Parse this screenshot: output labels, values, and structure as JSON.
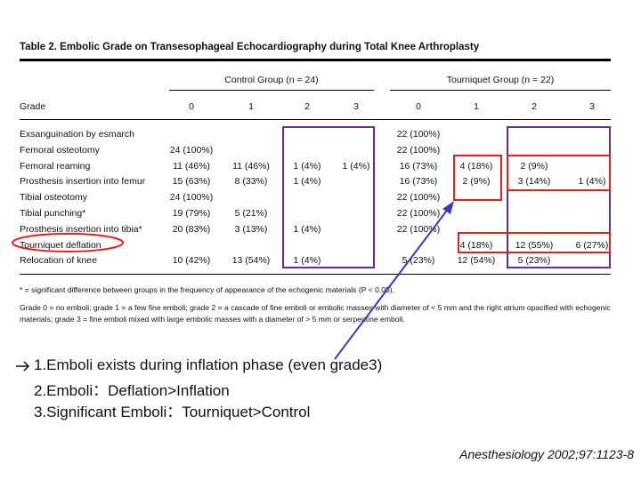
{
  "table": {
    "title": "Table 2. Embolic Grade on Transesophageal Echocardiography during Total Knee Arthroplasty",
    "groups": [
      "Control Group (n = 24)",
      "Tourniquet Group (n = 22)"
    ],
    "header": [
      "Grade",
      "0",
      "1",
      "2",
      "3",
      "0",
      "1",
      "2",
      "3"
    ],
    "rows": [
      [
        "Exsanguination by esmarch",
        null,
        null,
        null,
        null,
        "22 (100%)",
        null,
        null,
        null
      ],
      [
        "Femoral osteotomy",
        "24 (100%)",
        null,
        null,
        null,
        "22 (100%)",
        null,
        null,
        null
      ],
      [
        "Femoral reaming",
        "11 (46%)",
        "11 (46%)",
        "1 (4%)",
        "1 (4%)",
        "16 (73%)",
        "4 (18%)",
        "2 (9%)",
        null
      ],
      [
        "Prosthesis insertion into femur",
        "15 (63%)",
        "8 (33%)",
        "1 (4%)",
        null,
        "16 (73%)",
        "2 (9%)",
        "3 (14%)",
        "1 (4%)"
      ],
      [
        "Tibial osteotomy",
        "24 (100%)",
        null,
        null,
        null,
        "22 (100%)",
        null,
        null,
        null
      ],
      [
        "Tibial punching*",
        "19 (79%)",
        "5 (21%)",
        null,
        null,
        "22 (100%)",
        null,
        null,
        null
      ],
      [
        "Prosthesis insertion into tibia*",
        "20 (83%)",
        "3 (13%)",
        "1 (4%)",
        null,
        "22 (100%)",
        null,
        null,
        null
      ],
      [
        "Tourniquet deflation",
        null,
        null,
        null,
        null,
        null,
        "4 (18%)",
        "12 (55%)",
        "6 (27%)"
      ],
      [
        "Relocation of knee",
        "10 (42%)",
        "13 (54%)",
        "1 (4%)",
        null,
        "5 (23%)",
        "12 (54%)",
        "5 (23%)",
        null
      ]
    ],
    "footnotes": [
      "* = significant difference between groups in the frequency of appearance of the echogenic materials (P < 0.05).",
      "Grade 0 = no emboli; grade 1 = a few fine emboli; grade 2 = a cascade of fine emboli or embolic masses with diameter of < 5 mm and the right atrium opacified with echogenic materials; grade 3 = fine emboli mixed with large embolic masses with a diameter of > 5 mm or serpentine emboli."
    ]
  },
  "notes": [
    "1.Emboli exists during inflation phase (even grade3)",
    "2.Emboli：Deflation>Inflation",
    "3.Significant Emboli：Tourniquet>Control"
  ],
  "citation": "Anesthesiology 2002;97:1123-8"
}
